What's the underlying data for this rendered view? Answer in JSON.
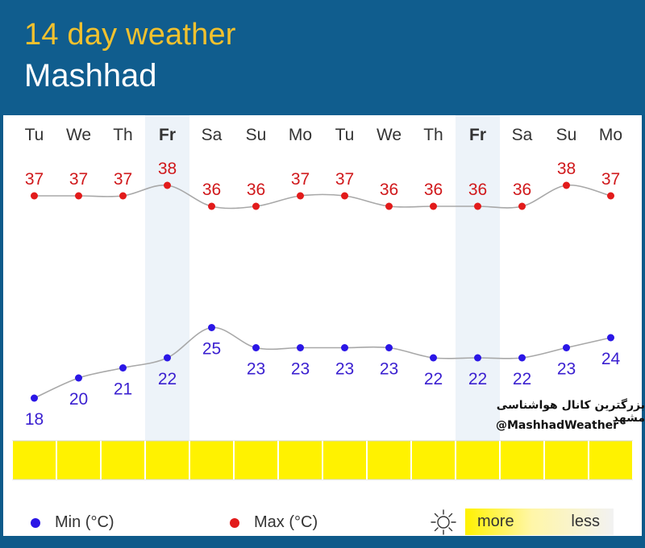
{
  "header": {
    "title": "14 day weather",
    "city": "Mashhad"
  },
  "days": [
    {
      "label": "Tu",
      "bold": false,
      "max": 37,
      "min": 18,
      "weekend": false
    },
    {
      "label": "We",
      "bold": false,
      "max": 37,
      "min": 20,
      "weekend": false
    },
    {
      "label": "Th",
      "bold": false,
      "max": 37,
      "min": 21,
      "weekend": false
    },
    {
      "label": "Fr",
      "bold": true,
      "max": 38,
      "min": 22,
      "weekend": true
    },
    {
      "label": "Sa",
      "bold": false,
      "max": 36,
      "min": 25,
      "weekend": false
    },
    {
      "label": "Su",
      "bold": false,
      "max": 36,
      "min": 23,
      "weekend": false
    },
    {
      "label": "Mo",
      "bold": false,
      "max": 37,
      "min": 23,
      "weekend": false
    },
    {
      "label": "Tu",
      "bold": false,
      "max": 37,
      "min": 23,
      "weekend": false
    },
    {
      "label": "We",
      "bold": false,
      "max": 36,
      "min": 23,
      "weekend": false
    },
    {
      "label": "Th",
      "bold": false,
      "max": 36,
      "min": 22,
      "weekend": false
    },
    {
      "label": "Fr",
      "bold": true,
      "max": 36,
      "min": 22,
      "weekend": true
    },
    {
      "label": "Sa",
      "bold": false,
      "max": 36,
      "min": 22,
      "weekend": false
    },
    {
      "label": "Su",
      "bold": false,
      "max": 38,
      "min": 23,
      "weekend": false
    },
    {
      "label": "Mo",
      "bold": false,
      "max": 37,
      "min": 24,
      "weekend": false
    }
  ],
  "sun_level": [
    1,
    1,
    1,
    1,
    1,
    1,
    1,
    1,
    1,
    1,
    1,
    1,
    1,
    1
  ],
  "watermark": {
    "fa": "بزرگترین کانال هواشناسی مشهد",
    "handle": "@MashhadWeather"
  },
  "legend": {
    "min_label": "Min (°C)",
    "max_label": "Max (°C)",
    "more_label": "more",
    "less_label": "less",
    "sun_icon": "sun-icon"
  },
  "colors": {
    "header_bg": "#105d8e",
    "title": "#f2c12e",
    "max": "#e21b1b",
    "min": "#2a16e6",
    "line": "#a8a8a8",
    "weekend_band": "#edf3f9",
    "sun_bar": "#fff200",
    "grid": "#d6d6d6"
  },
  "chart_data": {
    "type": "line",
    "categories": [
      "Tu",
      "We",
      "Th",
      "Fr",
      "Sa",
      "Su",
      "Mo",
      "Tu",
      "We",
      "Th",
      "Fr",
      "Sa",
      "Su",
      "Mo"
    ],
    "series": [
      {
        "name": "Max (°C)",
        "values": [
          37,
          37,
          37,
          38,
          36,
          36,
          37,
          37,
          36,
          36,
          36,
          36,
          38,
          37
        ]
      },
      {
        "name": "Min (°C)",
        "values": [
          18,
          20,
          21,
          22,
          25,
          23,
          23,
          23,
          23,
          22,
          22,
          22,
          23,
          24
        ]
      }
    ]
  }
}
